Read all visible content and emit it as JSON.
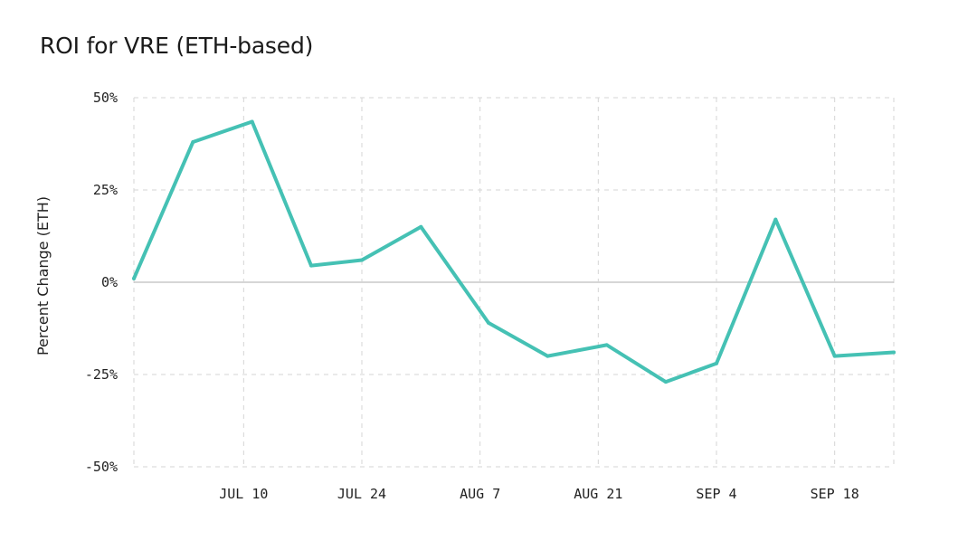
{
  "chart_data": {
    "type": "line",
    "title": "ROI for VRE (ETH-based)",
    "ylabel": "Percent Change (ETH)",
    "xlabel": "",
    "ylim": [
      -50,
      50
    ],
    "y_ticks": [
      "50%",
      "25%",
      "0%",
      "-25%",
      "-50%"
    ],
    "y_tick_values": [
      50,
      25,
      0,
      -25,
      -50
    ],
    "x_ticks": [
      "JUL 10",
      "JUL 24",
      "AUG 7",
      "AUG 21",
      "SEP 4",
      "SEP 18"
    ],
    "x_tick_positions": [
      "2023-07-10",
      "2023-07-24",
      "2023-08-07",
      "2023-08-21",
      "2023-09-04",
      "2023-09-18"
    ],
    "grid": true,
    "series": [
      {
        "color": "#45c1b4",
        "x": [
          "2023-06-27",
          "2023-07-04",
          "2023-07-11",
          "2023-07-18",
          "2023-07-24",
          "2023-07-31",
          "2023-08-08",
          "2023-08-15",
          "2023-08-22",
          "2023-08-29",
          "2023-09-04",
          "2023-09-11",
          "2023-09-18",
          "2023-09-25"
        ],
        "values": [
          1,
          38,
          43.5,
          4.5,
          6,
          15,
          -11,
          -20,
          -17,
          -27,
          -22,
          17,
          -20,
          -19
        ]
      }
    ]
  }
}
